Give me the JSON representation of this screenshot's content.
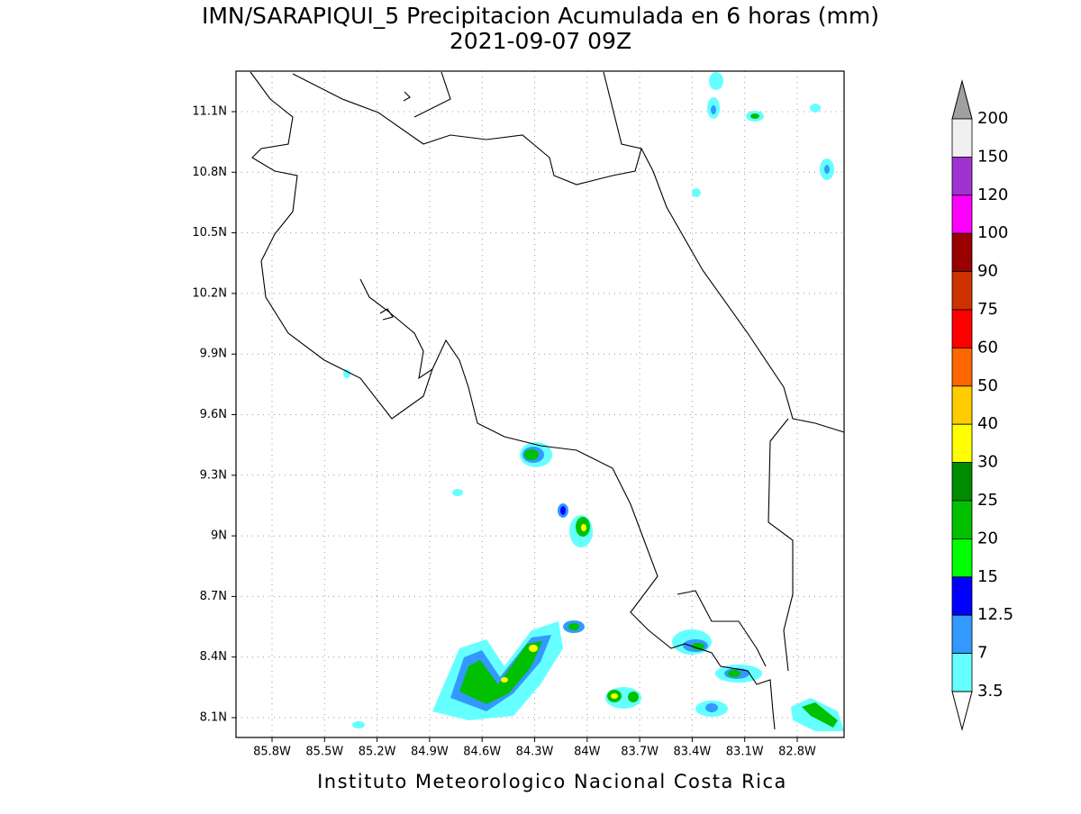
{
  "map": {
    "title": "IMN/SARAPIQUI_5 Precipitacion Acumulada en 6 horas (mm)",
    "subtitle": "2021-09-07 09Z",
    "footer": "Instituto Meteorologico Nacional Costa Rica",
    "lat_labels": [
      "11.1N",
      "10.8N",
      "10.5N",
      "10.2N",
      "9.9N",
      "9.6N",
      "9.3N",
      "9N",
      "8.7N",
      "8.4N",
      "8.1N"
    ],
    "lon_labels": [
      "85.8W",
      "85.5W",
      "85.2W",
      "84.9W",
      "84.6W",
      "84.3W",
      "84W",
      "83.7W",
      "83.4W",
      "83.1W",
      "82.8W"
    ],
    "colorbar": {
      "labels": [
        "200",
        "150",
        "120",
        "100",
        "90",
        "75",
        "60",
        "50",
        "40",
        "30",
        "25",
        "20",
        "15",
        "12.5",
        "7",
        "3.5"
      ],
      "colors": [
        "#f0f0f0",
        "#a032d2",
        "#ff00ff",
        "#990000",
        "#cc3300",
        "#ff0000",
        "#ff6600",
        "#ffcc00",
        "#ffff00",
        "#008c00",
        "#00c000",
        "#00ff00",
        "#0000ff",
        "#3399ff",
        "#66ffff"
      ],
      "over_color": "#a0a0a0",
      "under_color": "#ffffff"
    }
  }
}
